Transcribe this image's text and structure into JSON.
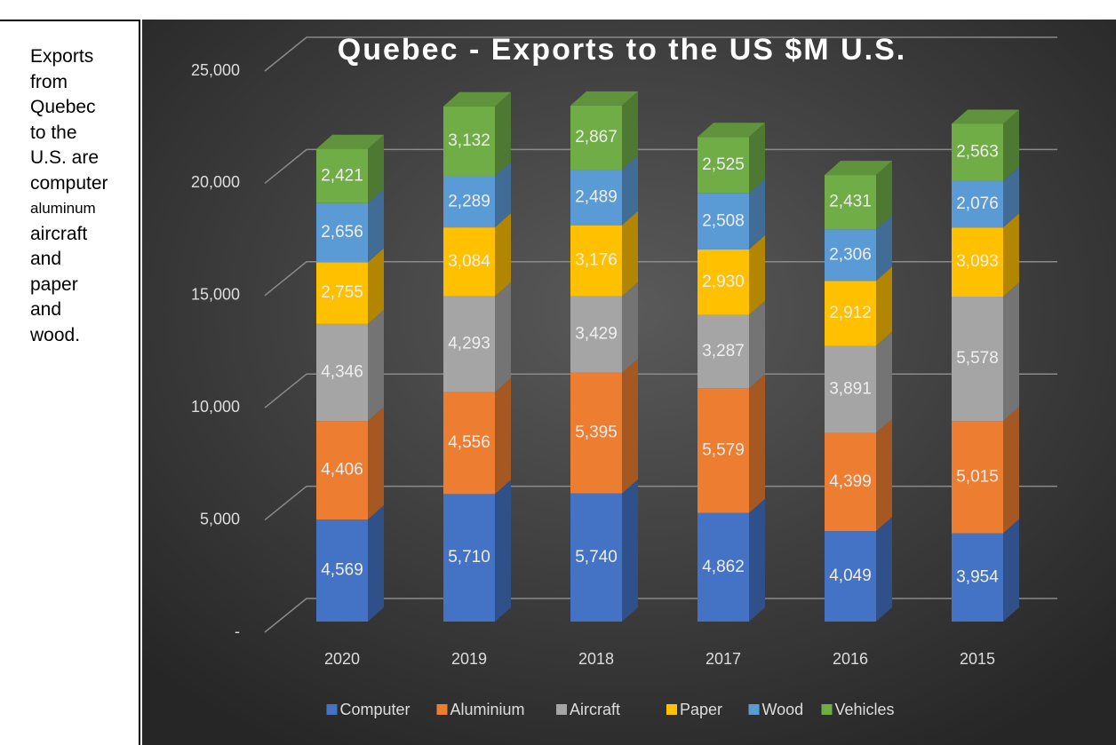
{
  "sidebar": {
    "lines": [
      "Exports",
      "from",
      "Quebec",
      "to the",
      "U.S. are",
      "computer",
      "aluminum",
      "aircraft",
      "and",
      "paper",
      "and",
      "wood."
    ]
  },
  "chart_data": {
    "type": "bar",
    "stacked": true,
    "title": "Quebec - Exports to the US $M U.S.",
    "categories": [
      "2020",
      "2019",
      "2018",
      "2017",
      "2016",
      "2015"
    ],
    "series": [
      {
        "name": "Computer",
        "color": "#4472c4",
        "values": [
          4569,
          5710,
          5740,
          4862,
          4049,
          3954
        ],
        "value_labels": [
          "4,569",
          "5,710",
          "5,740",
          "4,862",
          "4,049",
          "3,954"
        ]
      },
      {
        "name": "Aluminium",
        "color": "#ed7d31",
        "values": [
          4406,
          4556,
          5395,
          5579,
          4399,
          5015
        ],
        "value_labels": [
          "4,406",
          "4,556",
          "5,395",
          "5,579",
          "4,399",
          "5,015"
        ]
      },
      {
        "name": "Aircraft",
        "color": "#a5a5a5",
        "values": [
          4346,
          4293,
          3429,
          3287,
          3891,
          5578
        ],
        "value_labels": [
          "4,346",
          "4,293",
          "3,429",
          "3,287",
          "3,891",
          "5,578"
        ]
      },
      {
        "name": "Paper",
        "color": "#ffc000",
        "values": [
          2755,
          3084,
          3176,
          2930,
          2912,
          3093
        ],
        "value_labels": [
          "2,755",
          "3,084",
          "3,176",
          "2,930",
          "2,912",
          "3,093"
        ]
      },
      {
        "name": "Wood",
        "color": "#5b9bd5",
        "values": [
          2656,
          2289,
          2489,
          2508,
          2306,
          2076
        ],
        "value_labels": [
          "2,656",
          "2,289",
          "2,489",
          "2,508",
          "2,306",
          "2,076"
        ]
      },
      {
        "name": "Vehicles",
        "color": "#70ad47",
        "values": [
          2421,
          3132,
          2867,
          2525,
          2431,
          2563
        ],
        "value_labels": [
          "2,421",
          "3,132",
          "2,867",
          "2,525",
          "2,431",
          "2,563"
        ]
      }
    ],
    "ylim": [
      0,
      25000
    ],
    "yticks": [
      {
        "value": 0,
        "label": "-"
      },
      {
        "value": 5000,
        "label": "5,000"
      },
      {
        "value": 10000,
        "label": "10,000"
      },
      {
        "value": 15000,
        "label": "15,000"
      },
      {
        "value": 20000,
        "label": "20,000"
      },
      {
        "value": 25000,
        "label": "25,000"
      }
    ],
    "grid": true,
    "legend": "bottom"
  }
}
